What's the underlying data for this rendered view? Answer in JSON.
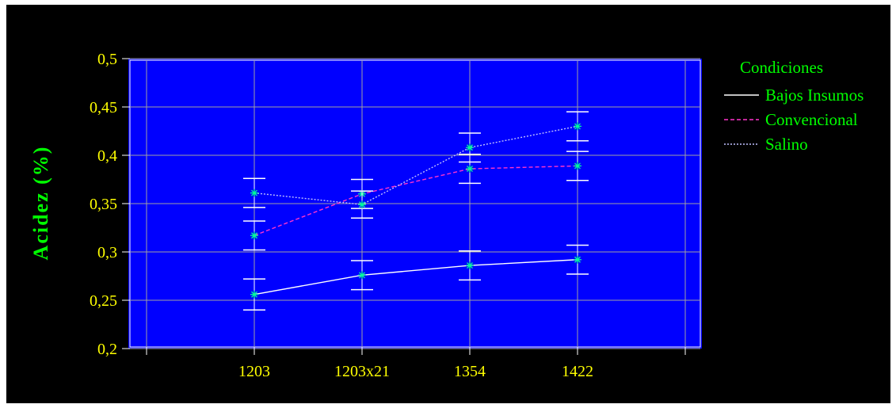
{
  "chart_data": {
    "type": "line",
    "categories": [
      "1203",
      "1203x21",
      "1354",
      "1422"
    ],
    "ylabel": "Acidez (%)",
    "xlabel": "",
    "ylim": [
      0.2,
      0.5
    ],
    "yticks": [
      "0,2",
      "0,25",
      "0,3",
      "0,35",
      "0,4",
      "0,45",
      "0,5"
    ],
    "grid": true,
    "legend": {
      "title": "Condiciones",
      "position": "right"
    },
    "series": [
      {
        "name": "Bajos Insumos",
        "values": [
          0.256,
          0.276,
          0.286,
          0.292
        ],
        "error": [
          0.016,
          0.015,
          0.015,
          0.015
        ],
        "color": "#ffffff",
        "dash": "solid"
      },
      {
        "name": "Convencional",
        "values": [
          0.317,
          0.36,
          0.386,
          0.389
        ],
        "error": [
          0.015,
          0.015,
          0.015,
          0.015
        ],
        "color": "#ff33cc",
        "dash": "dashed"
      },
      {
        "name": "Salino",
        "values": [
          0.361,
          0.349,
          0.408,
          0.43
        ],
        "error": [
          0.015,
          0.014,
          0.015,
          0.015
        ],
        "color": "#c0c0ff",
        "dash": "dotted"
      }
    ],
    "colors": {
      "frame_background": "#000000",
      "plot_background": "#0000ff",
      "grid": "#a0a0a0",
      "tick_text": "#ffff00",
      "axis_label": "#00ff00",
      "marker": "#00ff99",
      "error_bar": "#ffffff"
    }
  }
}
